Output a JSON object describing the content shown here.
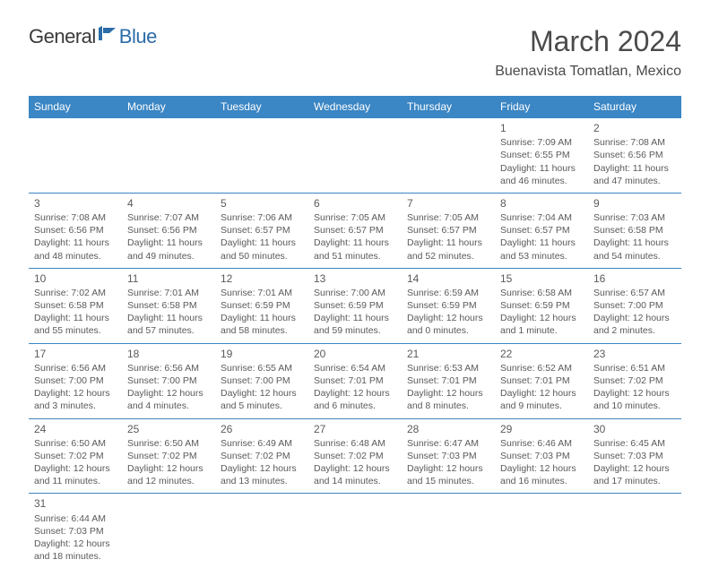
{
  "brand": {
    "part1": "General",
    "part2": "Blue"
  },
  "title": "March 2024",
  "location": "Buenavista Tomatlan, Mexico",
  "colors": {
    "header_bg": "#3b86c4",
    "header_text": "#ffffff",
    "body_text": "#5a5a5a",
    "title_text": "#4a4a4a",
    "brand_blue": "#2c6ca8"
  },
  "days": [
    "Sunday",
    "Monday",
    "Tuesday",
    "Wednesday",
    "Thursday",
    "Friday",
    "Saturday"
  ],
  "weeks": [
    [
      null,
      null,
      null,
      null,
      null,
      {
        "n": "1",
        "sr": "Sunrise: 7:09 AM",
        "ss": "Sunset: 6:55 PM",
        "d1": "Daylight: 11 hours",
        "d2": "and 46 minutes."
      },
      {
        "n": "2",
        "sr": "Sunrise: 7:08 AM",
        "ss": "Sunset: 6:56 PM",
        "d1": "Daylight: 11 hours",
        "d2": "and 47 minutes."
      }
    ],
    [
      {
        "n": "3",
        "sr": "Sunrise: 7:08 AM",
        "ss": "Sunset: 6:56 PM",
        "d1": "Daylight: 11 hours",
        "d2": "and 48 minutes."
      },
      {
        "n": "4",
        "sr": "Sunrise: 7:07 AM",
        "ss": "Sunset: 6:56 PM",
        "d1": "Daylight: 11 hours",
        "d2": "and 49 minutes."
      },
      {
        "n": "5",
        "sr": "Sunrise: 7:06 AM",
        "ss": "Sunset: 6:57 PM",
        "d1": "Daylight: 11 hours",
        "d2": "and 50 minutes."
      },
      {
        "n": "6",
        "sr": "Sunrise: 7:05 AM",
        "ss": "Sunset: 6:57 PM",
        "d1": "Daylight: 11 hours",
        "d2": "and 51 minutes."
      },
      {
        "n": "7",
        "sr": "Sunrise: 7:05 AM",
        "ss": "Sunset: 6:57 PM",
        "d1": "Daylight: 11 hours",
        "d2": "and 52 minutes."
      },
      {
        "n": "8",
        "sr": "Sunrise: 7:04 AM",
        "ss": "Sunset: 6:57 PM",
        "d1": "Daylight: 11 hours",
        "d2": "and 53 minutes."
      },
      {
        "n": "9",
        "sr": "Sunrise: 7:03 AM",
        "ss": "Sunset: 6:58 PM",
        "d1": "Daylight: 11 hours",
        "d2": "and 54 minutes."
      }
    ],
    [
      {
        "n": "10",
        "sr": "Sunrise: 7:02 AM",
        "ss": "Sunset: 6:58 PM",
        "d1": "Daylight: 11 hours",
        "d2": "and 55 minutes."
      },
      {
        "n": "11",
        "sr": "Sunrise: 7:01 AM",
        "ss": "Sunset: 6:58 PM",
        "d1": "Daylight: 11 hours",
        "d2": "and 57 minutes."
      },
      {
        "n": "12",
        "sr": "Sunrise: 7:01 AM",
        "ss": "Sunset: 6:59 PM",
        "d1": "Daylight: 11 hours",
        "d2": "and 58 minutes."
      },
      {
        "n": "13",
        "sr": "Sunrise: 7:00 AM",
        "ss": "Sunset: 6:59 PM",
        "d1": "Daylight: 11 hours",
        "d2": "and 59 minutes."
      },
      {
        "n": "14",
        "sr": "Sunrise: 6:59 AM",
        "ss": "Sunset: 6:59 PM",
        "d1": "Daylight: 12 hours",
        "d2": "and 0 minutes."
      },
      {
        "n": "15",
        "sr": "Sunrise: 6:58 AM",
        "ss": "Sunset: 6:59 PM",
        "d1": "Daylight: 12 hours",
        "d2": "and 1 minute."
      },
      {
        "n": "16",
        "sr": "Sunrise: 6:57 AM",
        "ss": "Sunset: 7:00 PM",
        "d1": "Daylight: 12 hours",
        "d2": "and 2 minutes."
      }
    ],
    [
      {
        "n": "17",
        "sr": "Sunrise: 6:56 AM",
        "ss": "Sunset: 7:00 PM",
        "d1": "Daylight: 12 hours",
        "d2": "and 3 minutes."
      },
      {
        "n": "18",
        "sr": "Sunrise: 6:56 AM",
        "ss": "Sunset: 7:00 PM",
        "d1": "Daylight: 12 hours",
        "d2": "and 4 minutes."
      },
      {
        "n": "19",
        "sr": "Sunrise: 6:55 AM",
        "ss": "Sunset: 7:00 PM",
        "d1": "Daylight: 12 hours",
        "d2": "and 5 minutes."
      },
      {
        "n": "20",
        "sr": "Sunrise: 6:54 AM",
        "ss": "Sunset: 7:01 PM",
        "d1": "Daylight: 12 hours",
        "d2": "and 6 minutes."
      },
      {
        "n": "21",
        "sr": "Sunrise: 6:53 AM",
        "ss": "Sunset: 7:01 PM",
        "d1": "Daylight: 12 hours",
        "d2": "and 8 minutes."
      },
      {
        "n": "22",
        "sr": "Sunrise: 6:52 AM",
        "ss": "Sunset: 7:01 PM",
        "d1": "Daylight: 12 hours",
        "d2": "and 9 minutes."
      },
      {
        "n": "23",
        "sr": "Sunrise: 6:51 AM",
        "ss": "Sunset: 7:02 PM",
        "d1": "Daylight: 12 hours",
        "d2": "and 10 minutes."
      }
    ],
    [
      {
        "n": "24",
        "sr": "Sunrise: 6:50 AM",
        "ss": "Sunset: 7:02 PM",
        "d1": "Daylight: 12 hours",
        "d2": "and 11 minutes."
      },
      {
        "n": "25",
        "sr": "Sunrise: 6:50 AM",
        "ss": "Sunset: 7:02 PM",
        "d1": "Daylight: 12 hours",
        "d2": "and 12 minutes."
      },
      {
        "n": "26",
        "sr": "Sunrise: 6:49 AM",
        "ss": "Sunset: 7:02 PM",
        "d1": "Daylight: 12 hours",
        "d2": "and 13 minutes."
      },
      {
        "n": "27",
        "sr": "Sunrise: 6:48 AM",
        "ss": "Sunset: 7:02 PM",
        "d1": "Daylight: 12 hours",
        "d2": "and 14 minutes."
      },
      {
        "n": "28",
        "sr": "Sunrise: 6:47 AM",
        "ss": "Sunset: 7:03 PM",
        "d1": "Daylight: 12 hours",
        "d2": "and 15 minutes."
      },
      {
        "n": "29",
        "sr": "Sunrise: 6:46 AM",
        "ss": "Sunset: 7:03 PM",
        "d1": "Daylight: 12 hours",
        "d2": "and 16 minutes."
      },
      {
        "n": "30",
        "sr": "Sunrise: 6:45 AM",
        "ss": "Sunset: 7:03 PM",
        "d1": "Daylight: 12 hours",
        "d2": "and 17 minutes."
      }
    ],
    [
      {
        "n": "31",
        "sr": "Sunrise: 6:44 AM",
        "ss": "Sunset: 7:03 PM",
        "d1": "Daylight: 12 hours",
        "d2": "and 18 minutes."
      },
      null,
      null,
      null,
      null,
      null,
      null
    ]
  ]
}
